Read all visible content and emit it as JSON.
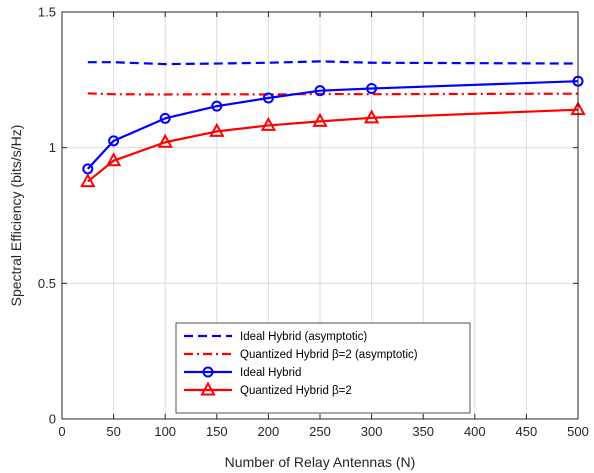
{
  "chart_data": {
    "type": "line",
    "title": "",
    "xlabel": "Number of Relay Antennas (N)",
    "ylabel": "Spectral Efficiency (bits/s/Hz)",
    "xlim": [
      0,
      500
    ],
    "ylim": [
      0,
      1.5
    ],
    "xticks": [
      0,
      50,
      100,
      150,
      200,
      250,
      300,
      350,
      400,
      450,
      500
    ],
    "yticks": [
      0,
      0.5,
      1,
      1.5
    ],
    "xtick_labels": [
      "0",
      "50",
      "100",
      "150",
      "200",
      "250",
      "300",
      "350",
      "400",
      "450",
      "500"
    ],
    "ytick_labels": [
      "0",
      "0.5",
      "1",
      "1.5"
    ],
    "grid": true,
    "legend_position": "bottom-center",
    "series": [
      {
        "name": "Ideal Hybrid (asymptotic)",
        "legend_label": "Ideal Hybrid (asymptotic)",
        "color": "#0000ff",
        "style": "dashed",
        "marker": "none",
        "x": [
          25,
          50,
          100,
          150,
          200,
          250,
          300,
          500
        ],
        "y": [
          1.315,
          1.315,
          1.308,
          1.31,
          1.313,
          1.318,
          1.313,
          1.31
        ]
      },
      {
        "name": "Quantized Hybrid β=2 (asymptotic)",
        "legend_label": "Quantized Hybrid β=2 (asymptotic)",
        "color": "#ff0000",
        "style": "dashdot",
        "marker": "none",
        "x": [
          25,
          50,
          100,
          150,
          200,
          250,
          300,
          500
        ],
        "y": [
          1.2,
          1.197,
          1.196,
          1.197,
          1.196,
          1.198,
          1.197,
          1.199
        ]
      },
      {
        "name": "Ideal Hybrid",
        "legend_label": "Ideal Hybrid",
        "color": "#0000ff",
        "style": "solid",
        "marker": "circle",
        "x": [
          25,
          50,
          100,
          150,
          200,
          250,
          300,
          500
        ],
        "y": [
          0.922,
          1.025,
          1.108,
          1.153,
          1.183,
          1.21,
          1.218,
          1.245
        ]
      },
      {
        "name": "Quantized Hybrid β=2",
        "legend_label": "Quantized Hybrid β=2",
        "color": "#ff0000",
        "style": "solid",
        "marker": "triangle",
        "x": [
          25,
          50,
          100,
          150,
          200,
          250,
          300,
          500
        ],
        "y": [
          0.875,
          0.952,
          1.02,
          1.06,
          1.082,
          1.097,
          1.11,
          1.14
        ]
      }
    ]
  }
}
